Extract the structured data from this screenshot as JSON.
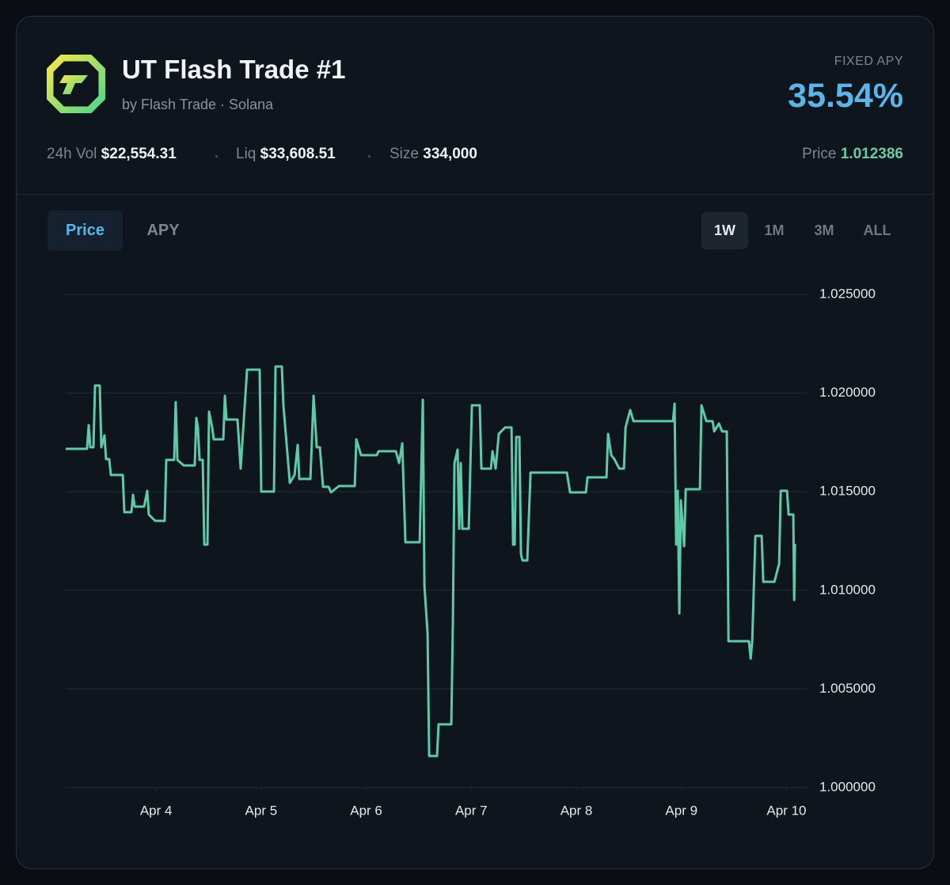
{
  "header": {
    "title": "UT Flash Trade #1",
    "subtitle": "by Flash Trade · Solana",
    "apy_label": "FIXED APY",
    "apy_value": "35.54%"
  },
  "stats": [
    {
      "label": "24h Vol",
      "value": "$22,554.31"
    },
    {
      "label": "Liq",
      "value": "$33,608.51"
    },
    {
      "label": "Size",
      "value": "334,000"
    }
  ],
  "price": {
    "label": "Price",
    "value": "1.012386"
  },
  "tabs": [
    "Price",
    "APY"
  ],
  "ranges": [
    "1W",
    "1M",
    "3M",
    "ALL"
  ],
  "chart_data": {
    "type": "line",
    "x": [
      3.14,
      3.343,
      3.359,
      3.374,
      3.404,
      3.419,
      3.464,
      3.479,
      3.509,
      3.524,
      3.554,
      3.57,
      3.683,
      3.698,
      3.765,
      3.781,
      3.796,
      3.886,
      3.916,
      3.931,
      3.992,
      4.082,
      4.097,
      4.172,
      4.187,
      4.203,
      4.263,
      4.368,
      4.383,
      4.398,
      4.414,
      4.444,
      4.459,
      4.489,
      4.504,
      4.534,
      4.549,
      4.64,
      4.655,
      4.67,
      4.775,
      4.805,
      4.866,
      4.986,
      5.001,
      5.122,
      5.137,
      5.197,
      5.212,
      5.273,
      5.318,
      5.348,
      5.363,
      5.469,
      5.499,
      5.529,
      5.559,
      5.589,
      5.642,
      5.665,
      5.74,
      5.891,
      5.906,
      5.951,
      6.102,
      6.117,
      6.282,
      6.313,
      6.343,
      6.373,
      6.509,
      6.539,
      6.554,
      6.584,
      6.599,
      6.674,
      6.689,
      6.81,
      6.825,
      6.84,
      6.87,
      6.885,
      6.9,
      6.915,
      6.976,
      7.006,
      7.081,
      7.096,
      7.187,
      7.202,
      7.232,
      7.262,
      7.322,
      7.383,
      7.398,
      7.413,
      7.428,
      7.458,
      7.473,
      7.488,
      7.533,
      7.564,
      7.91,
      7.94,
      8.091,
      8.106,
      8.287,
      8.302,
      8.332,
      8.362,
      8.408,
      8.453,
      8.468,
      8.513,
      8.543,
      8.709,
      8.92,
      8.935,
      8.95,
      8.965,
      8.98,
      8.995,
      9.026,
      9.041,
      9.176,
      9.191,
      9.237,
      9.297,
      9.312,
      9.357,
      9.387,
      9.432,
      9.448,
      9.643,
      9.659,
      9.674,
      9.704,
      9.764,
      9.779,
      9.885,
      9.93,
      9.945,
      10.005,
      10.02,
      10.065,
      10.073,
      10.081
    ],
    "series": [
      {
        "color": "#5fc9a8",
        "values": [
          1.017175,
          1.017175,
          1.018379,
          1.017255,
          1.017255,
          1.020385,
          1.020385,
          1.017255,
          1.017857,
          1.016653,
          1.016653,
          1.015851,
          1.015851,
          1.013965,
          1.013965,
          1.014848,
          1.014246,
          1.014246,
          1.015048,
          1.013844,
          1.013523,
          1.013523,
          1.016613,
          1.016613,
          1.019543,
          1.016613,
          1.016332,
          1.016332,
          1.01874,
          1.018258,
          1.016613,
          1.016613,
          1.012319,
          1.012319,
          1.019061,
          1.018258,
          1.017657,
          1.017657,
          1.019864,
          1.01866,
          1.01866,
          1.016172,
          1.021188,
          1.021188,
          1.015008,
          1.015008,
          1.021348,
          1.021348,
          1.019382,
          1.015449,
          1.015851,
          1.017376,
          1.01565,
          1.01565,
          1.019864,
          1.017255,
          1.017255,
          1.015249,
          1.015249,
          1.014968,
          1.015289,
          1.015289,
          1.017657,
          1.016854,
          1.016854,
          1.017055,
          1.017055,
          1.016453,
          1.017456,
          1.01244,
          1.01244,
          1.019663,
          1.010233,
          1.007825,
          1.001605,
          1.001605,
          1.00321,
          1.00321,
          1.008427,
          1.016453,
          1.017135,
          1.013122,
          1.016453,
          1.013122,
          1.013122,
          1.019382,
          1.019382,
          1.016172,
          1.016172,
          1.017055,
          1.016172,
          1.017937,
          1.018258,
          1.018258,
          1.012319,
          1.012319,
          1.017777,
          1.017777,
          1.011838,
          1.011517,
          1.011517,
          1.015971,
          1.015971,
          1.014968,
          1.014968,
          1.01573,
          1.01573,
          1.017937,
          1.016854,
          1.016653,
          1.016172,
          1.016172,
          1.018258,
          1.019141,
          1.018579,
          1.018579,
          1.018579,
          1.019462,
          1.012319,
          1.015048,
          1.008828,
          1.014567,
          1.012239,
          1.015128,
          1.015128,
          1.019382,
          1.018579,
          1.018579,
          1.018058,
          1.018459,
          1.018058,
          1.018058,
          1.007424,
          1.007424,
          1.006541,
          1.007424,
          1.012761,
          1.012761,
          1.010433,
          1.010433,
          1.011356,
          1.015048,
          1.015048,
          1.013844,
          1.013844,
          1.00951,
          1.01236
        ]
      }
    ],
    "xlim": [
      3.14,
      10.2
    ],
    "xticks": [
      {
        "value": 4,
        "label": "Apr 4"
      },
      {
        "value": 5,
        "label": "Apr 5"
      },
      {
        "value": 6,
        "label": "Apr 6"
      },
      {
        "value": 7,
        "label": "Apr 7"
      },
      {
        "value": 8,
        "label": "Apr 8"
      },
      {
        "value": 9,
        "label": "Apr 9"
      },
      {
        "value": 10,
        "label": "Apr 10"
      }
    ],
    "ylim": [
      1.0,
      1.025
    ],
    "yticks": [
      {
        "value": 1.0,
        "label": "1.000000"
      },
      {
        "value": 1.005,
        "label": "1.005000"
      },
      {
        "value": 1.01,
        "label": "1.010000"
      },
      {
        "value": 1.015,
        "label": "1.015000"
      },
      {
        "value": 1.02,
        "label": "1.020000"
      },
      {
        "value": 1.025,
        "label": "1.025000"
      }
    ],
    "grid": true
  }
}
